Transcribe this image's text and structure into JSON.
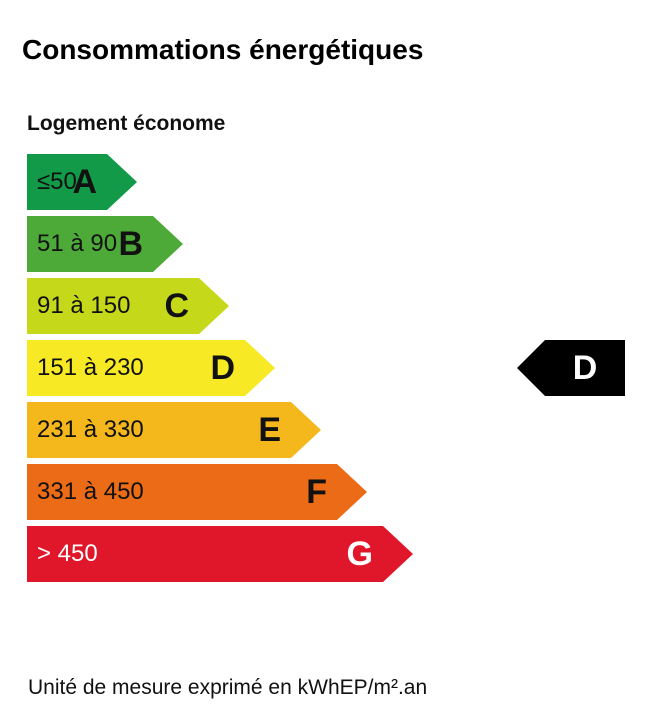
{
  "title": "Consommations énergétiques",
  "subtitle": "Logement économe",
  "classes": [
    {
      "range": "≤50",
      "letter": "A",
      "color": "#129a48",
      "text": "dark"
    },
    {
      "range": "51 à 90",
      "letter": "B",
      "color": "#4eaa38",
      "text": "dark"
    },
    {
      "range": "91 à 150",
      "letter": "C",
      "color": "#c6d81a",
      "text": "dark"
    },
    {
      "range": "151 à 230",
      "letter": "D",
      "color": "#f7e923",
      "text": "dark"
    },
    {
      "range": "231 à 330",
      "letter": "E",
      "color": "#f4b71c",
      "text": "dark"
    },
    {
      "range": "331 à 450",
      "letter": "F",
      "color": "#eb6b16",
      "text": "dark"
    },
    {
      "range": "> 450",
      "letter": "G",
      "color": "#e0172a",
      "text": "light"
    }
  ],
  "current": {
    "letter": "D",
    "color": "#000000"
  },
  "footer": "Unité de mesure exprimé en kWhEP/m².an"
}
